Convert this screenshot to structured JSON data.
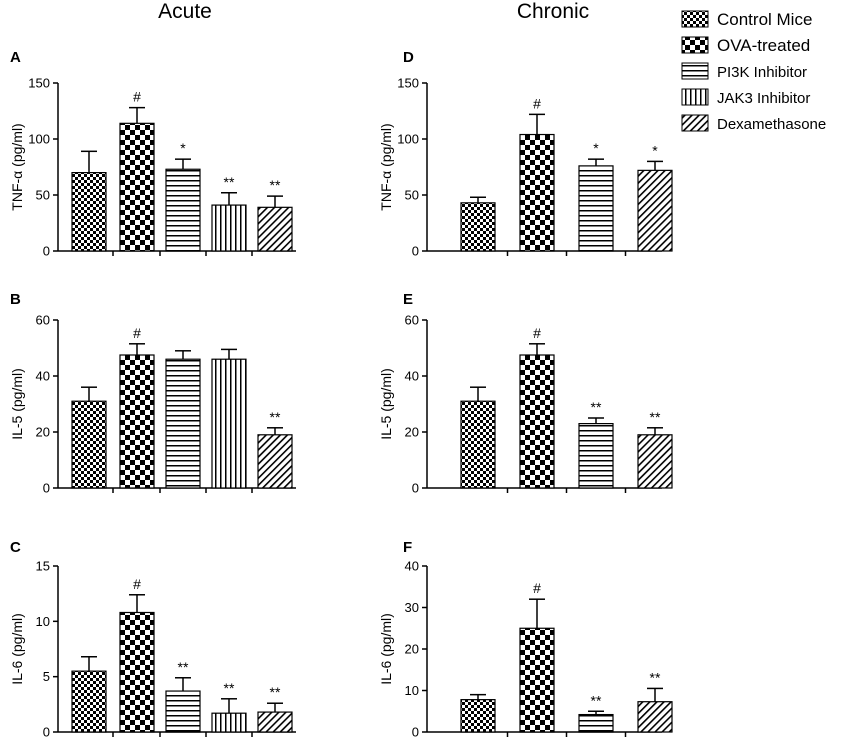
{
  "columns": {
    "left": "Acute",
    "right": "Chronic"
  },
  "legend": [
    {
      "label": "Control Mice",
      "pattern": "checker-fine"
    },
    {
      "label": "OVA-treated",
      "pattern": "checker-coarse"
    },
    {
      "label": "PI3K Inhibitor",
      "pattern": "hlines"
    },
    {
      "label": "JAK3 Inhibitor",
      "pattern": "vlines"
    },
    {
      "label": "Dexamethasone",
      "pattern": "diag"
    }
  ],
  "chart_data": [
    {
      "panel": "A",
      "type": "bar",
      "ylabel": "TNF-α (pg/ml)",
      "ylim": [
        0,
        150
      ],
      "yticks": [
        0,
        50,
        100,
        150
      ],
      "categories": [
        "Control Mice",
        "OVA-treated",
        "PI3K Inhibitor",
        "JAK3 Inhibitor",
        "Dexamethasone"
      ],
      "values": [
        70,
        114,
        73,
        41,
        39
      ],
      "errors": [
        19,
        14,
        9,
        11,
        10
      ],
      "annotations": [
        "",
        "#",
        "*",
        "**",
        "**"
      ]
    },
    {
      "panel": "D",
      "type": "bar",
      "ylabel": "TNF-α (pg/ml)",
      "ylim": [
        0,
        150
      ],
      "yticks": [
        0,
        50,
        100,
        150
      ],
      "categories": [
        "Control Mice",
        "OVA-treated",
        "PI3K Inhibitor",
        "Dexamethasone"
      ],
      "values": [
        43,
        104,
        76,
        72
      ],
      "errors": [
        5,
        18,
        6,
        8
      ],
      "annotations": [
        "",
        "#",
        "*",
        "*"
      ]
    },
    {
      "panel": "B",
      "type": "bar",
      "ylabel": "IL-5 (pg/ml)",
      "ylim": [
        0,
        60
      ],
      "yticks": [
        0,
        20,
        40,
        60
      ],
      "categories": [
        "Control Mice",
        "OVA-treated",
        "PI3K Inhibitor",
        "JAK3 Inhibitor",
        "Dexamethasone"
      ],
      "values": [
        31,
        47.5,
        46,
        46,
        19
      ],
      "errors": [
        5,
        4,
        3,
        3.5,
        2.5
      ],
      "annotations": [
        "",
        "#",
        "",
        "",
        "**"
      ]
    },
    {
      "panel": "E",
      "type": "bar",
      "ylabel": "IL-5 (pg/ml)",
      "ylim": [
        0,
        60
      ],
      "yticks": [
        0,
        20,
        40,
        60
      ],
      "categories": [
        "Control Mice",
        "OVA-treated",
        "PI3K Inhibitor",
        "Dexamethasone"
      ],
      "values": [
        31,
        47.5,
        23,
        19
      ],
      "errors": [
        5,
        4,
        2,
        2.5
      ],
      "annotations": [
        "",
        "#",
        "**",
        "**"
      ]
    },
    {
      "panel": "C",
      "type": "bar",
      "ylabel": "IL-6 (pg/ml)",
      "ylim": [
        0,
        15
      ],
      "yticks": [
        0,
        5,
        10,
        15
      ],
      "categories": [
        "Control Mice",
        "OVA-treated",
        "PI3K Inhibitor",
        "JAK3 Inhibitor",
        "Dexamethasone"
      ],
      "values": [
        5.5,
        10.8,
        3.7,
        1.7,
        1.8
      ],
      "errors": [
        1.3,
        1.6,
        1.2,
        1.3,
        0.8
      ],
      "annotations": [
        "",
        "#",
        "**",
        "**",
        "**"
      ]
    },
    {
      "panel": "F",
      "type": "bar",
      "ylabel": "IL-6 (pg/ml)",
      "ylim": [
        0,
        40
      ],
      "yticks": [
        0,
        10,
        20,
        30,
        40
      ],
      "categories": [
        "Control Mice",
        "OVA-treated",
        "PI3K Inhibitor",
        "Dexamethasone"
      ],
      "values": [
        7.8,
        25,
        4.2,
        7.3
      ],
      "errors": [
        1.2,
        7,
        0.8,
        3.2
      ],
      "annotations": [
        "",
        "#",
        "**",
        "**"
      ]
    }
  ]
}
